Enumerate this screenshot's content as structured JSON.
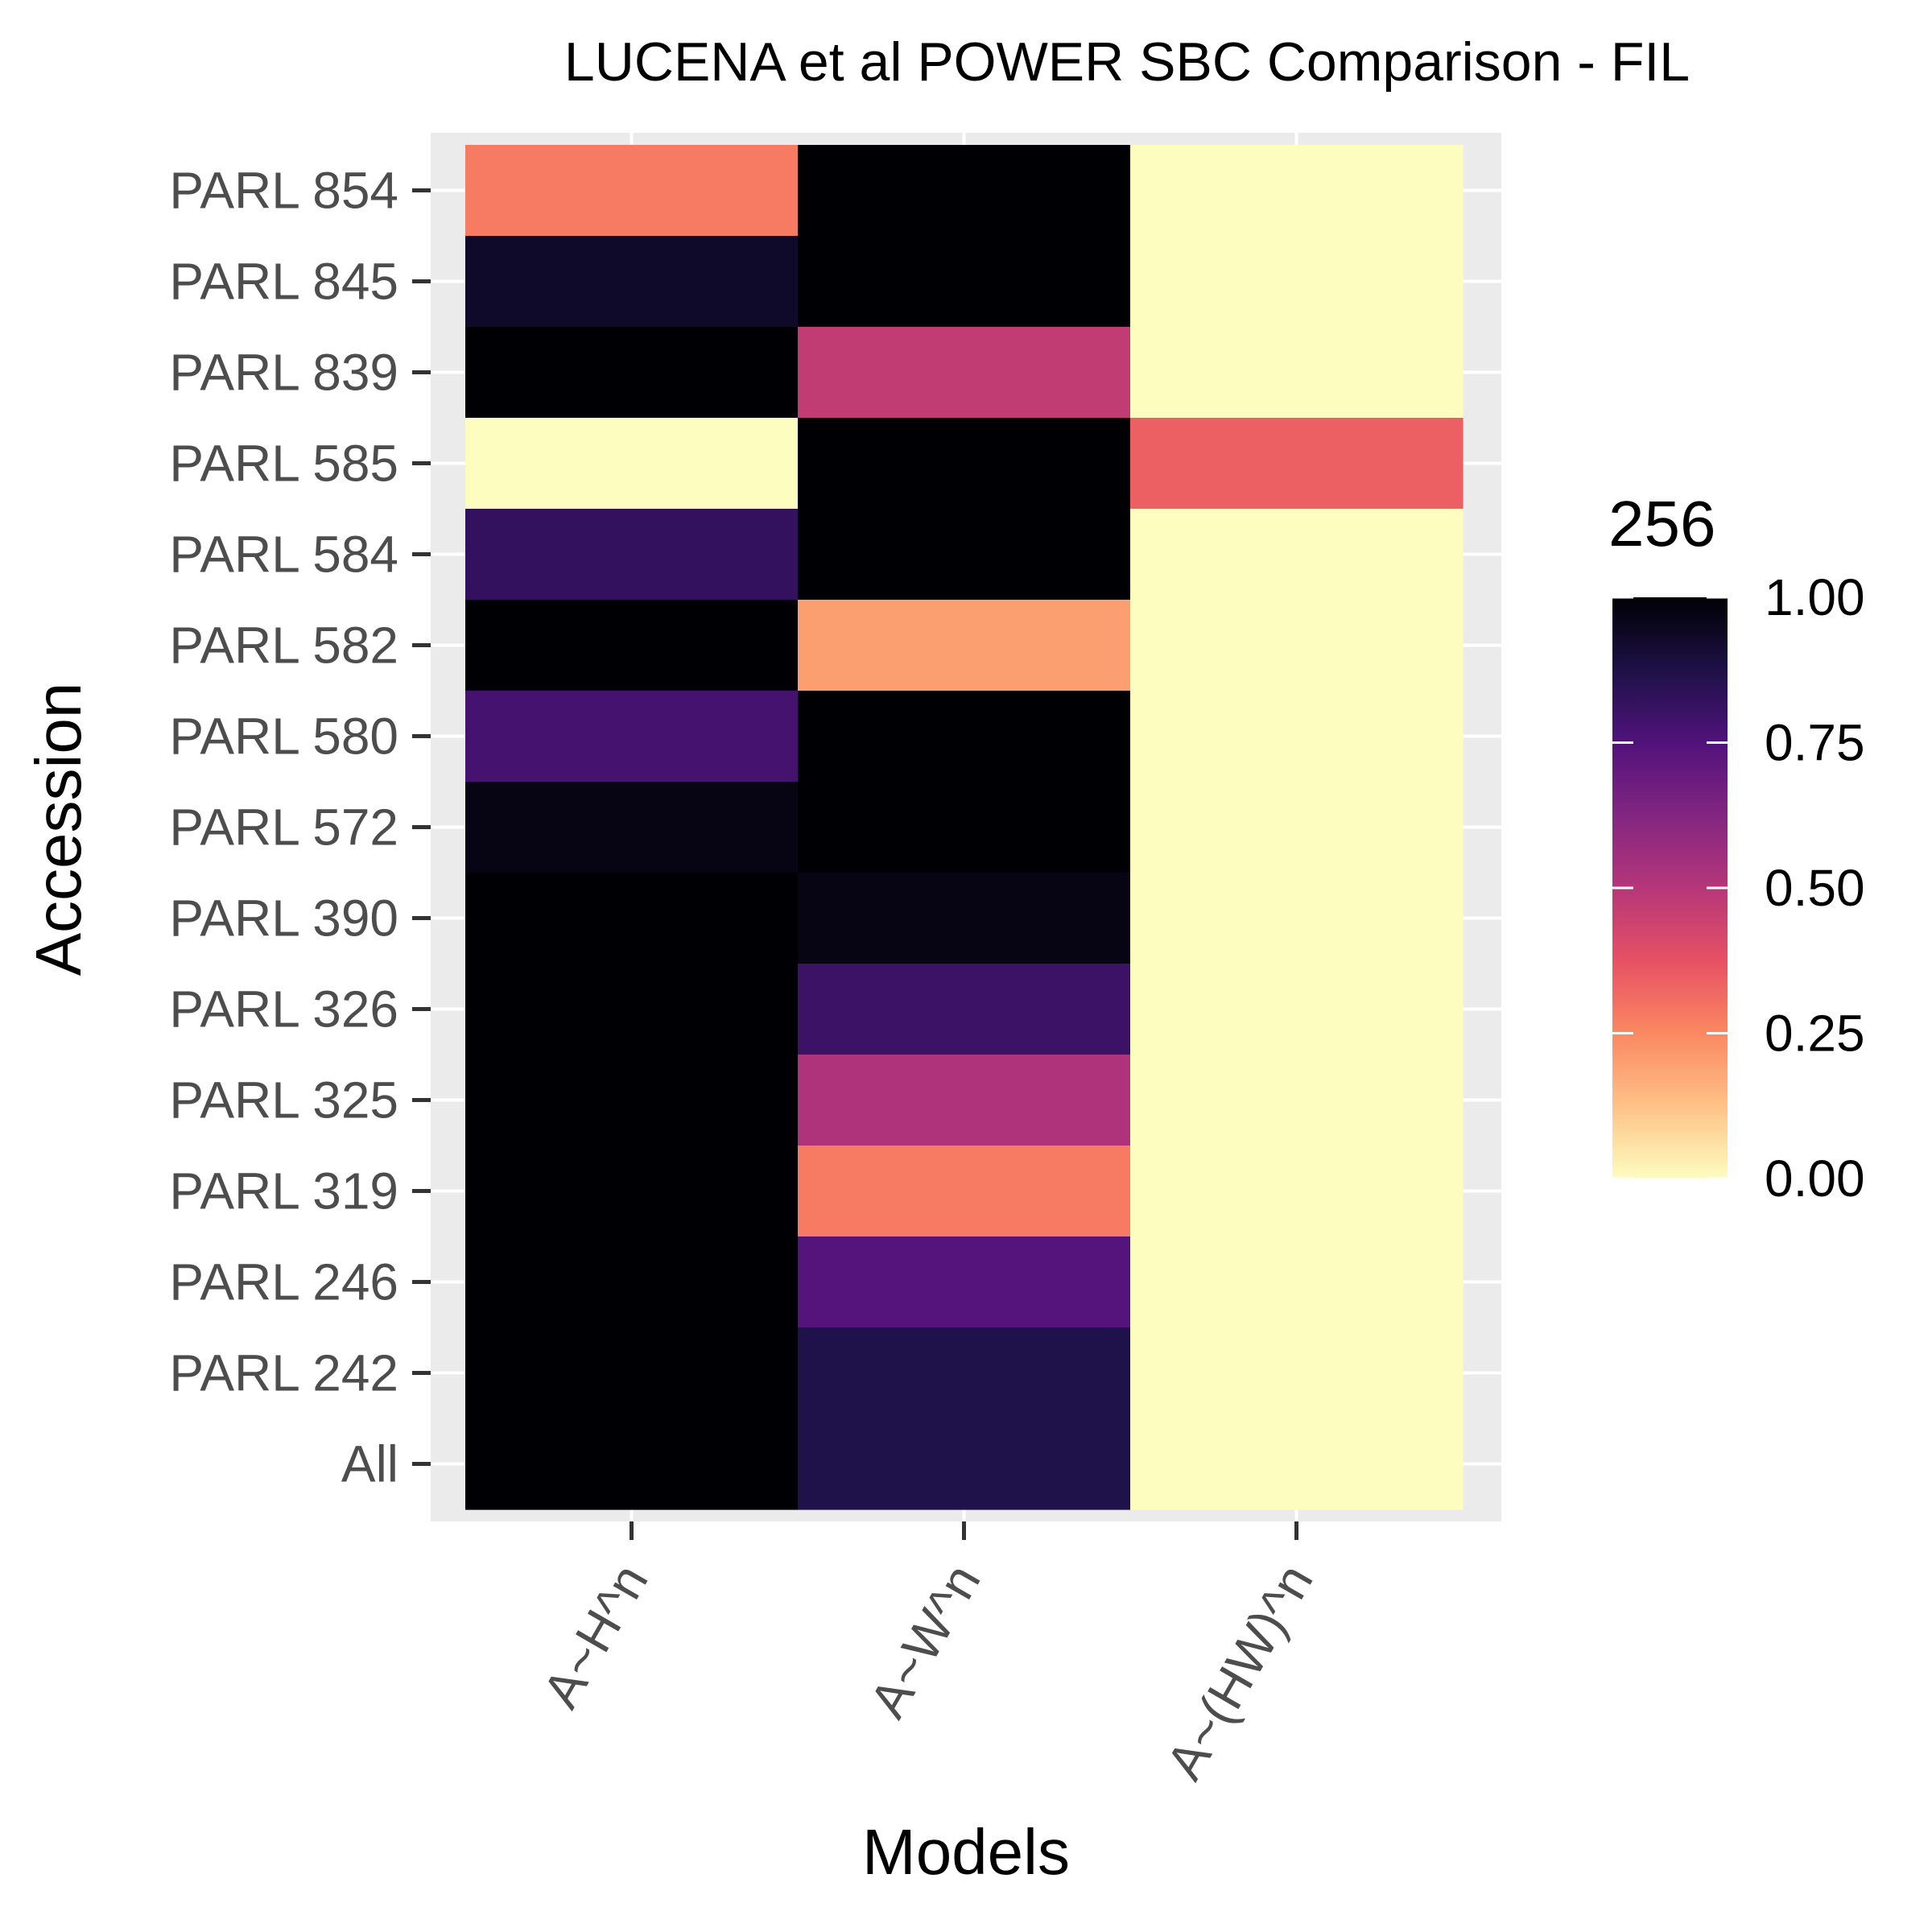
{
  "chart_data": {
    "type": "heatmap",
    "title": "LUCENA et al POWER SBC Comparison - FIL",
    "xlabel": "Models",
    "ylabel": "Accession",
    "x_categories": [
      "A~H^n",
      "A~W^n",
      "A~(HW)^n"
    ],
    "y_categories": [
      "PARL 854",
      "PARL 845",
      "PARL 839",
      "PARL 585",
      "PARL 584",
      "PARL 582",
      "PARL 580",
      "PARL 572",
      "PARL 390",
      "PARL 326",
      "PARL 325",
      "PARL 319",
      "PARL 246",
      "PARL 242",
      "All"
    ],
    "values": [
      [
        0.28,
        1.0,
        0.0
      ],
      [
        0.93,
        1.0,
        0.0
      ],
      [
        1.0,
        0.47,
        0.0
      ],
      [
        0.0,
        1.0,
        0.34
      ],
      [
        0.82,
        1.0,
        0.0
      ],
      [
        1.0,
        0.2,
        0.0
      ],
      [
        0.78,
        1.0,
        0.0
      ],
      [
        0.97,
        1.0,
        0.0
      ],
      [
        1.0,
        0.97,
        0.0
      ],
      [
        1.0,
        0.8,
        0.0
      ],
      [
        1.0,
        0.52,
        0.0
      ],
      [
        1.0,
        0.28,
        0.0
      ],
      [
        1.0,
        0.74,
        0.0
      ],
      [
        1.0,
        0.87,
        0.0
      ],
      [
        1.0,
        0.87,
        0.0
      ]
    ],
    "legend": {
      "title": "256",
      "range": [
        0,
        1
      ],
      "ticks": [
        "0.00",
        "0.25",
        "0.50",
        "0.75",
        "1.00"
      ],
      "palette": [
        "#FCFDBF",
        "#FEC287",
        "#FB8861",
        "#E65164",
        "#B63679",
        "#822681",
        "#51127C",
        "#1D1147",
        "#000004"
      ],
      "placement": "right"
    },
    "panel_background": "#EBEBEB",
    "grid": true
  }
}
